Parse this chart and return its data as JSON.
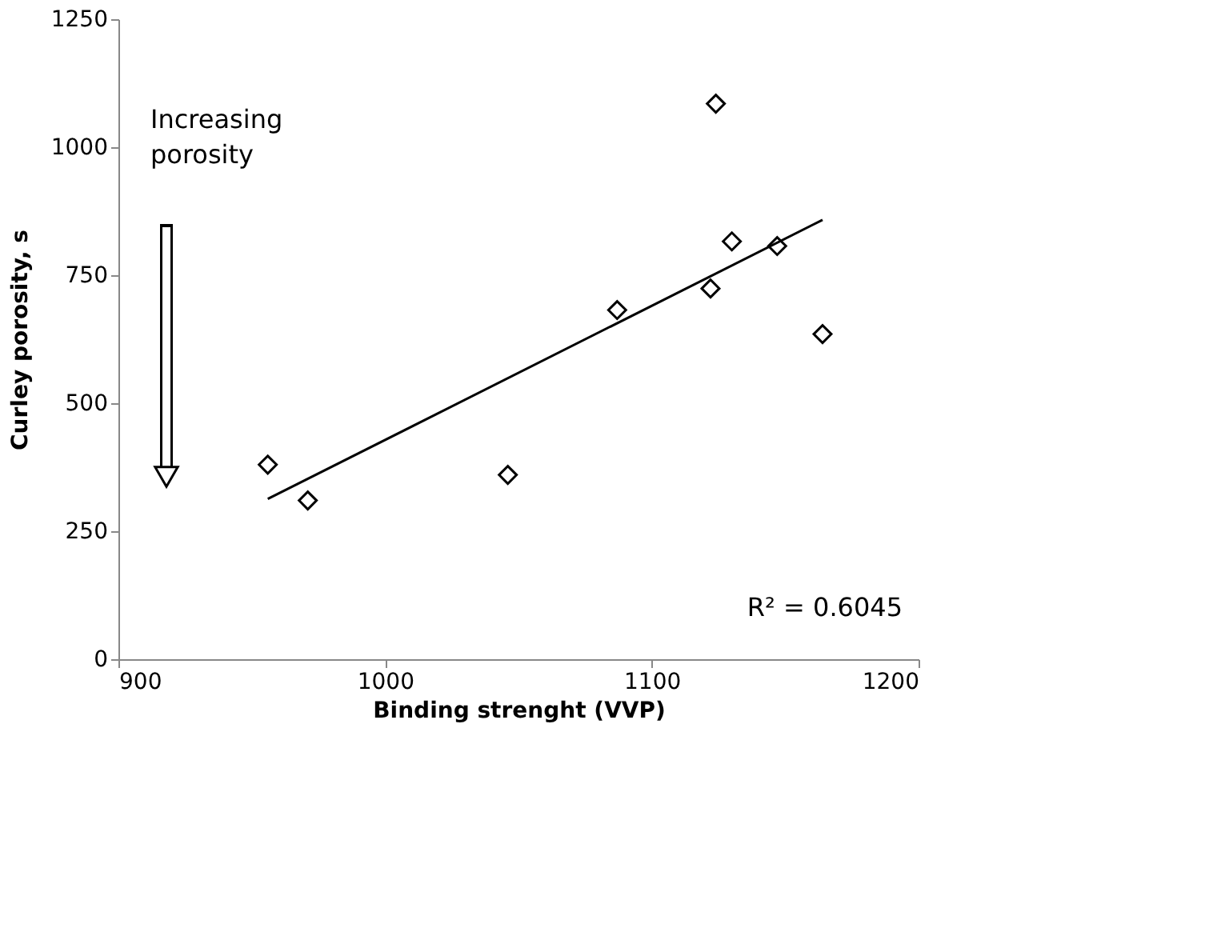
{
  "chart_data": {
    "type": "scatter",
    "xlabel": "Binding strenght (VVP)",
    "ylabel": "Curley porosity, s",
    "series": [
      {
        "color": "#000000",
        "marker": "diamond",
        "x": [
          956,
          971,
          1046,
          1087,
          1122,
          1124,
          1130,
          1147,
          1164
        ],
        "values": [
          380,
          310,
          360,
          682,
          724,
          1085,
          816,
          807,
          635
        ]
      },
      {
        "type": "line",
        "color": "#000000",
        "marker": "none",
        "x": [
          956,
          1164
        ],
        "values": [
          313,
          858
        ]
      }
    ],
    "xlim": [
      900,
      1200
    ],
    "xticks": [
      900,
      1000,
      1100,
      1200
    ],
    "ylim": [
      0,
      1250
    ],
    "yticks": [
      0,
      250,
      500,
      750,
      1000,
      1250
    ],
    "grid": false,
    "annotations": [
      "Increasing\nporosity",
      "R² = 0.6045"
    ]
  }
}
